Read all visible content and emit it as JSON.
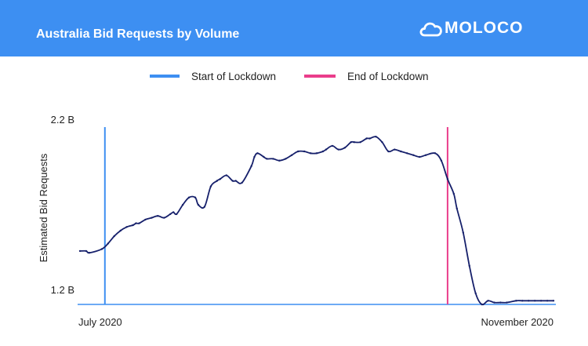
{
  "header": {
    "title": "Australia Bid Requests by Volume",
    "brand": "MOLOCO",
    "brand_icon": "cloud-icon",
    "background_color": "#3d8ff2"
  },
  "chart_data": {
    "type": "line",
    "title": "Australia Bid Requests by Volume",
    "xlabel": "",
    "ylabel": "Estimated Bid Requests",
    "ylim": [
      1.2,
      2.2
    ],
    "y_unit": "B",
    "y_tick_labels": [
      "2.2 B",
      "1.2 B"
    ],
    "x_tick_labels": [
      "July 2020",
      "November 2020"
    ],
    "xlim": [
      "2020-07-01",
      "2020-11-30"
    ],
    "grid": false,
    "legend_position": "top-center",
    "legend": [
      {
        "label": "Start of Lockdown",
        "color": "#3d8ff2"
      },
      {
        "label": "End of Lockdown",
        "color": "#ea3d8b"
      }
    ],
    "markers": [
      {
        "name": "Start of Lockdown",
        "x": "2020-07-09",
        "color": "#3d8ff2"
      },
      {
        "name": "End of Lockdown",
        "x": "2020-10-27",
        "color": "#ea3d8b"
      }
    ],
    "series": [
      {
        "color": "#16206b",
        "x": [
          "2020-07-01",
          "2020-07-03",
          "2020-07-04",
          "2020-07-08",
          "2020-07-10",
          "2020-07-12",
          "2020-07-14",
          "2020-07-16",
          "2020-07-18",
          "2020-07-19",
          "2020-07-20",
          "2020-07-22",
          "2020-07-24",
          "2020-07-26",
          "2020-07-28",
          "2020-07-30",
          "2020-07-31",
          "2020-08-01",
          "2020-08-03",
          "2020-08-05",
          "2020-08-07",
          "2020-08-08",
          "2020-08-10",
          "2020-08-12",
          "2020-08-14",
          "2020-08-15",
          "2020-08-17",
          "2020-08-19",
          "2020-08-20",
          "2020-08-22",
          "2020-08-25",
          "2020-08-26",
          "2020-08-27",
          "2020-08-29",
          "2020-08-30",
          "2020-09-01",
          "2020-09-03",
          "2020-09-05",
          "2020-09-07",
          "2020-09-09",
          "2020-09-11",
          "2020-09-13",
          "2020-09-15",
          "2020-09-17",
          "2020-09-18",
          "2020-09-20",
          "2020-09-22",
          "2020-09-24",
          "2020-09-26",
          "2020-09-27",
          "2020-09-29",
          "2020-10-01",
          "2020-10-02",
          "2020-10-04",
          "2020-10-06",
          "2020-10-08",
          "2020-10-10",
          "2020-10-12",
          "2020-10-14",
          "2020-10-16",
          "2020-10-18",
          "2020-10-20",
          "2020-10-23",
          "2020-10-25",
          "2020-10-27",
          "2020-10-29",
          "2020-10-30",
          "2020-11-01",
          "2020-11-03",
          "2020-11-05",
          "2020-11-07",
          "2020-11-09",
          "2020-11-11",
          "2020-11-13",
          "2020-11-15",
          "2020-11-18",
          "2020-11-20",
          "2020-11-22",
          "2020-11-24",
          "2020-11-26",
          "2020-11-28",
          "2020-11-30"
        ],
        "values": [
          1.49,
          1.49,
          1.48,
          1.5,
          1.53,
          1.57,
          1.6,
          1.62,
          1.63,
          1.64,
          1.64,
          1.66,
          1.67,
          1.68,
          1.67,
          1.69,
          1.7,
          1.69,
          1.74,
          1.78,
          1.78,
          1.74,
          1.73,
          1.84,
          1.87,
          1.88,
          1.9,
          1.87,
          1.87,
          1.86,
          1.95,
          2.0,
          2.02,
          2.0,
          1.99,
          1.99,
          1.98,
          1.99,
          2.01,
          2.03,
          2.03,
          2.02,
          2.02,
          2.03,
          2.04,
          2.06,
          2.04,
          2.05,
          2.08,
          2.08,
          2.08,
          2.1,
          2.1,
          2.11,
          2.08,
          2.03,
          2.04,
          2.03,
          2.02,
          2.01,
          2.0,
          2.01,
          2.02,
          1.98,
          1.88,
          1.8,
          1.72,
          1.59,
          1.41,
          1.26,
          1.2,
          1.22,
          1.21,
          1.21,
          1.21,
          1.22,
          1.22,
          1.22,
          1.22,
          1.22,
          1.22,
          1.22
        ]
      }
    ]
  }
}
